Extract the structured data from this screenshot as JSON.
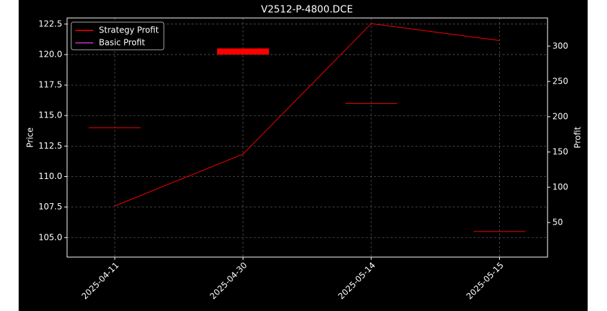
{
  "chart_data": {
    "type": "candlestick",
    "title": "V2512-P-4800.DCE",
    "ylabel": "Price",
    "y2label": "Profit",
    "categories": [
      "2025-04-11",
      "2025-04-30",
      "2025-05-14",
      "2025-05-15"
    ],
    "candles": {
      "open": [
        114.0,
        120.5,
        116.0,
        105.5
      ],
      "close": [
        114.0,
        120.0,
        116.0,
        105.5
      ],
      "up_color": "#00c000",
      "down_color": "#ff0000"
    },
    "series": [
      {
        "name": "Strategy Profit",
        "color": "#ff0000",
        "axis": "y2",
        "values": [
          73.5,
          147,
          332,
          308
        ]
      },
      {
        "name": "Basic Profit",
        "color": "#cc33cc",
        "axis": "y2",
        "values": [
          null,
          null,
          null,
          null
        ]
      }
    ],
    "ylim": [
      103.4,
      123.0
    ],
    "yticks": [
      {
        "value": 105,
        "label": "105.0"
      },
      107.5,
      {
        "value": 110,
        "label": "110.0"
      },
      112.5,
      {
        "value": 115,
        "label": "115.0"
      },
      117.5,
      {
        "value": 120,
        "label": "120.0"
      },
      122.5
    ],
    "y2lim": [
      1,
      340
    ],
    "y2ticks": [
      50,
      100,
      150,
      200,
      250,
      300
    ],
    "grid": true,
    "legend": "upper-left"
  }
}
